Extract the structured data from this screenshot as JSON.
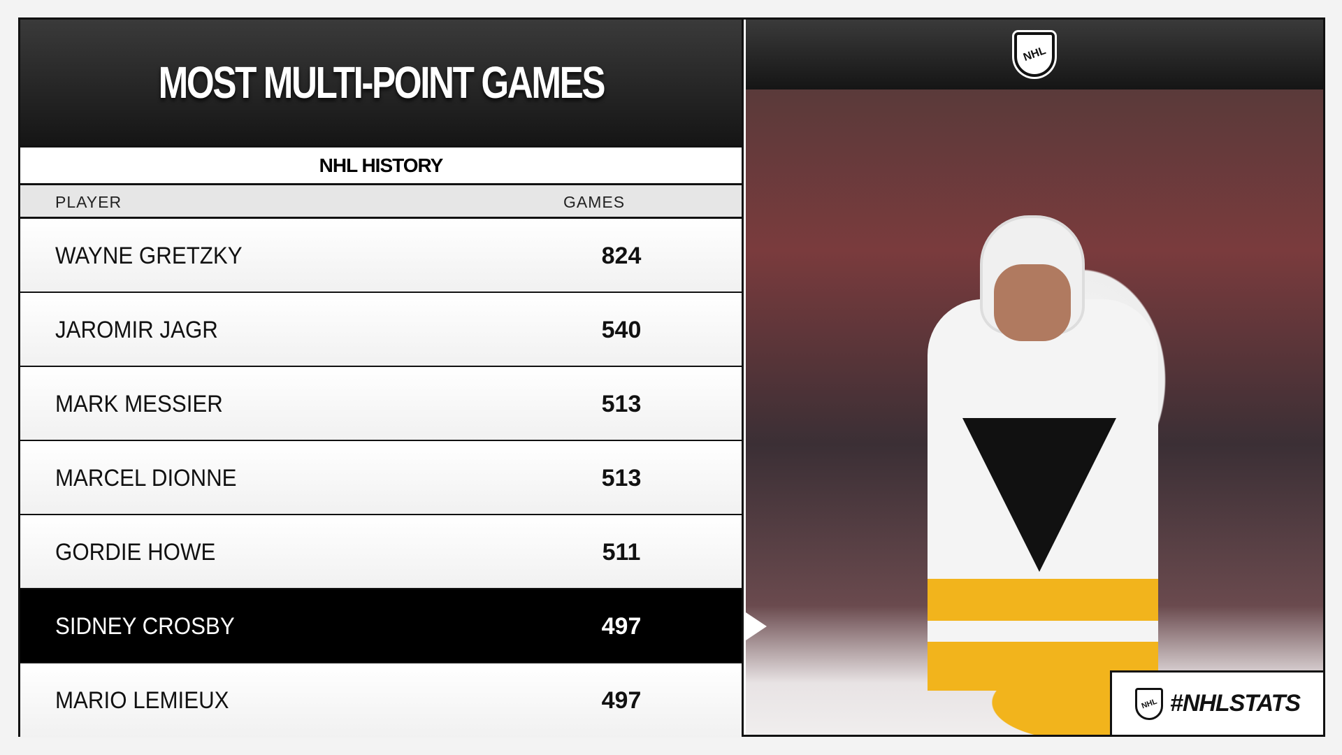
{
  "title": "MOST MULTI-POINT GAMES",
  "subtitle": "NHL HISTORY",
  "columns": {
    "player": "PLAYER",
    "games": "GAMES"
  },
  "rows": [
    {
      "player": "WAYNE GRETZKY",
      "games": "824"
    },
    {
      "player": "JAROMIR JAGR",
      "games": "540"
    },
    {
      "player": "MARK MESSIER",
      "games": "513"
    },
    {
      "player": "MARCEL DIONNE",
      "games": "513"
    },
    {
      "player": "GORDIE HOWE",
      "games": "511"
    },
    {
      "player": "SIDNEY CROSBY",
      "games": "497",
      "highlighted": true
    },
    {
      "player": "MARIO LEMIEUX",
      "games": "497"
    }
  ],
  "logo": "NHL",
  "hashtag": "#NHLSTATS",
  "colors": {
    "highlight": "#000000",
    "header": "#1c1c1c",
    "accent": "#f2b41c"
  }
}
